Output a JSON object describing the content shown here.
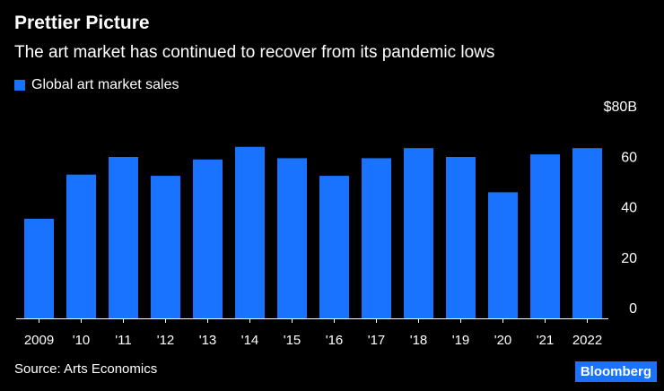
{
  "header": {
    "title": "Prettier Picture",
    "subtitle": "The art market has continued to recover from its pandemic lows"
  },
  "legend": {
    "label": "Global art market sales"
  },
  "footer": {
    "source": "Source: Arts Economics",
    "brand": "Bloomberg"
  },
  "colors": {
    "bar": "#1a73ff",
    "background": "#000000",
    "text": "#ffffff",
    "axis": "#ffffff"
  },
  "chart_data": {
    "type": "bar",
    "title": "Prettier Picture",
    "subtitle": "The art market has continued to recover from its pandemic lows",
    "categories": [
      "2009",
      "'10",
      "'11",
      "'12",
      "'13",
      "'14",
      "'15",
      "'16",
      "'17",
      "'18",
      "'19",
      "'20",
      "'21",
      "2022"
    ],
    "series": [
      {
        "name": "Global art market sales",
        "values": [
          39.5,
          57,
          64,
          56.5,
          63,
          68,
          63.5,
          56.5,
          63.5,
          67.5,
          64,
          50,
          65,
          67.5
        ]
      }
    ],
    "ylim": [
      0,
      80
    ],
    "yticks": [
      {
        "value": 0,
        "label": "0"
      },
      {
        "value": 20,
        "label": "20"
      },
      {
        "value": 40,
        "label": "40"
      },
      {
        "value": 60,
        "label": "60"
      },
      {
        "value": 80,
        "label": "$80B"
      }
    ],
    "xlabel": "",
    "ylabel": "",
    "yaxis_side": "right",
    "grid": false,
    "legend_position": "top-left"
  }
}
